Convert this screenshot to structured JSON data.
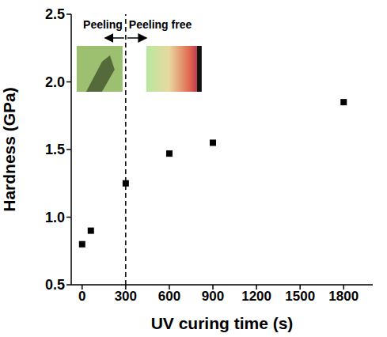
{
  "chart_data": {
    "type": "scatter",
    "x_label": "UV curing time (s)",
    "y_label": "Hardness (GPa)",
    "x": [
      0,
      60,
      300,
      600,
      900,
      1800
    ],
    "values": [
      0.8,
      0.9,
      1.25,
      1.47,
      1.55,
      1.85
    ],
    "color": "#000000",
    "marker": "square",
    "xlim": [
      -75,
      2000
    ],
    "xticks": [
      0,
      300,
      600,
      900,
      1200,
      1500,
      1800
    ],
    "ylim": [
      0.5,
      2.5
    ],
    "yticks": [
      0.5,
      {
        "value": 1,
        "label": "1.0"
      },
      1.5,
      {
        "value": 2,
        "label": "2.0"
      },
      2.5
    ],
    "grid": false,
    "divider_x": 300,
    "divider_line_style": "dashed",
    "annotations": [
      {
        "text": "Peeling"
      },
      {
        "text": "Peeling free"
      }
    ]
  }
}
